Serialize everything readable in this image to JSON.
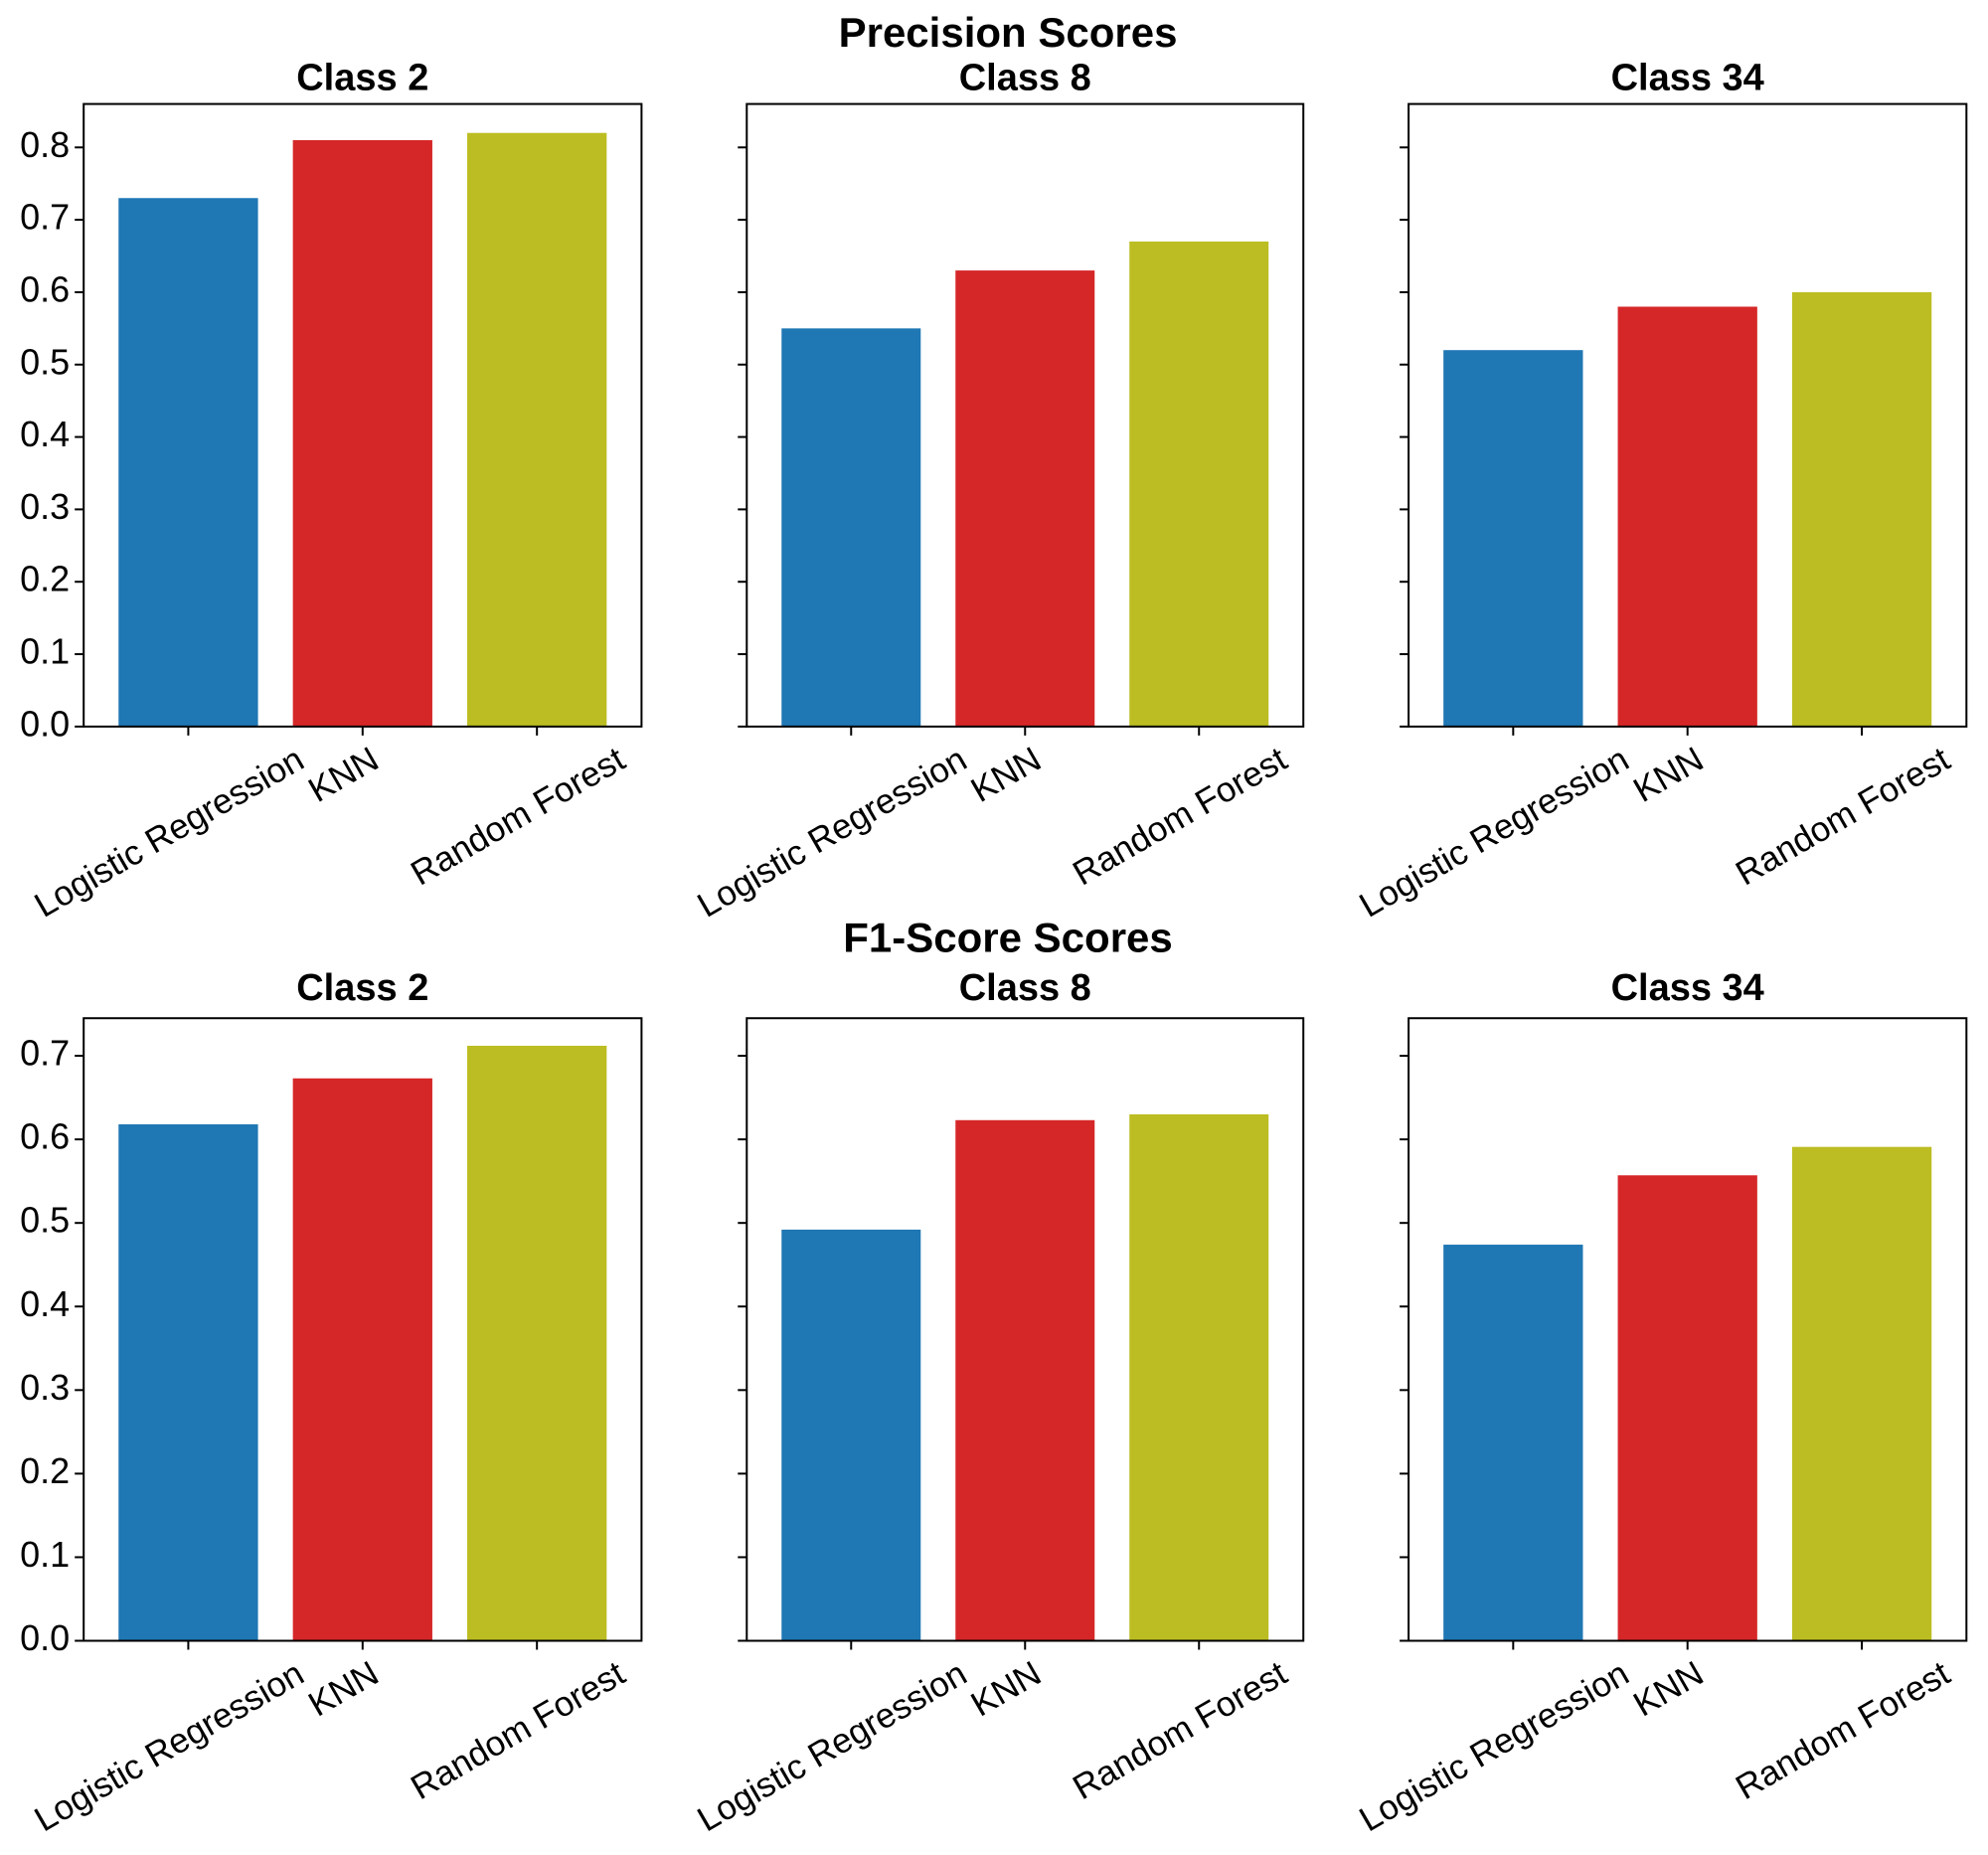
{
  "chart_data": [
    {
      "type": "bar",
      "title": "Precision Scores",
      "ylim": [
        0,
        0.86
      ],
      "yticks": [
        0.0,
        0.1,
        0.2,
        0.3,
        0.4,
        0.5,
        0.6,
        0.7,
        0.8
      ],
      "categories": [
        "Logistic Regression",
        "KNN",
        "Random Forest"
      ],
      "colors": [
        "#1f77b4",
        "#d62728",
        "#bcbd22"
      ],
      "panels": [
        {
          "title": "Class 2",
          "values": [
            0.73,
            0.81,
            0.82
          ]
        },
        {
          "title": "Class 8",
          "values": [
            0.55,
            0.63,
            0.67
          ]
        },
        {
          "title": "Class 34",
          "values": [
            0.52,
            0.58,
            0.6
          ]
        }
      ]
    },
    {
      "type": "bar",
      "title": "F1-Score Scores",
      "ylim": [
        0,
        0.745
      ],
      "yticks": [
        0.0,
        0.1,
        0.2,
        0.3,
        0.4,
        0.5,
        0.6,
        0.7
      ],
      "categories": [
        "Logistic Regression",
        "KNN",
        "Random Forest"
      ],
      "colors": [
        "#1f77b4",
        "#d62728",
        "#bcbd22"
      ],
      "panels": [
        {
          "title": "Class 2",
          "values": [
            0.618,
            0.673,
            0.712
          ]
        },
        {
          "title": "Class 8",
          "values": [
            0.492,
            0.623,
            0.63
          ]
        },
        {
          "title": "Class 34",
          "values": [
            0.474,
            0.557,
            0.591
          ]
        }
      ]
    }
  ]
}
